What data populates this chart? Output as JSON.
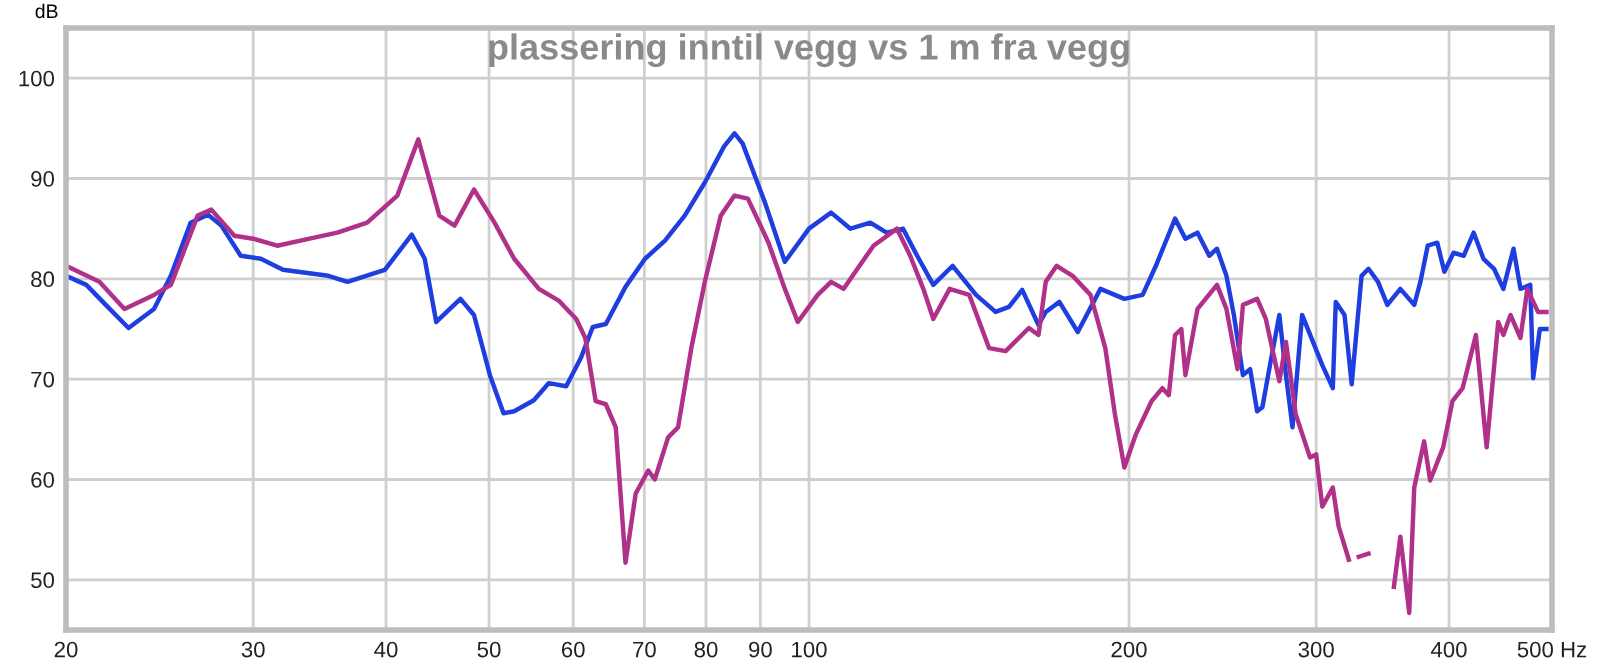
{
  "chart_data": {
    "type": "line",
    "title": "plassering inntil vegg vs 1 m fra vegg",
    "ylabel": "dB",
    "log": "x",
    "xlim": [
      20,
      500
    ],
    "ylim": [
      45,
      105
    ],
    "xticks": [
      20,
      30,
      40,
      50,
      60,
      70,
      80,
      90,
      100,
      200,
      300,
      400,
      {
        "value": 500,
        "label": "500 Hz"
      }
    ],
    "yticks": [
      50,
      60,
      70,
      80,
      90,
      100
    ],
    "grid": true,
    "marker": "none",
    "line_style": "solid",
    "series": [
      {
        "color": "#1f3ee0",
        "x": [
          20,
          20.9,
          21.8,
          22.9,
          24.2,
          25.1,
          26.2,
          27.2,
          28,
          29.2,
          30.5,
          32,
          35.3,
          36.8,
          39.9,
          42.3,
          43.5,
          44.6,
          47,
          48.4,
          50.1,
          51.6,
          52.8,
          55.1,
          56.9,
          59.1,
          61,
          62.6,
          64.4,
          67.2,
          70.1,
          73.2,
          76.4,
          79.8,
          83.2,
          85.1,
          86.6,
          90.9,
          94.9,
          100,
          104.9,
          109.4,
          114.2,
          118.3,
          122.6,
          126.4,
          130.9,
          136.5,
          143.6,
          149.8,
          154.2,
          158.7,
          164.4,
          167,
          172,
          179,
          188,
          198,
          206,
          212,
          221,
          226,
          232,
          238,
          242,
          247,
          251,
          256,
          260,
          264,
          267,
          271,
          277,
          281,
          285,
          291,
          298,
          304,
          311,
          313,
          319,
          324,
          331,
          336,
          343,
          350,
          360,
          371,
          376,
          382,
          390,
          396,
          404,
          413,
          422,
          431,
          441,
          450,
          460,
          467,
          477,
          480,
          487,
          494
        ],
        "values": [
          80.3,
          79.4,
          77.4,
          75.1,
          77,
          80.3,
          85.6,
          86.4,
          85.3,
          82.3,
          82,
          80.9,
          80.3,
          79.7,
          80.9,
          84.4,
          82,
          75.7,
          78,
          76.4,
          70.4,
          66.6,
          66.8,
          67.9,
          69.6,
          69.3,
          72.1,
          75.2,
          75.5,
          79.2,
          82,
          83.8,
          86.3,
          89.6,
          93.2,
          94.5,
          93.5,
          87.6,
          81.7,
          85,
          86.6,
          85,
          85.6,
          84.6,
          85,
          82.3,
          79.4,
          81.3,
          78.4,
          76.7,
          77.2,
          78.9,
          75.4,
          76.7,
          77.7,
          74.7,
          79,
          78,
          78.4,
          81.3,
          86,
          84,
          84.6,
          82.3,
          83,
          80.3,
          76.4,
          70.4,
          71,
          66.8,
          67.2,
          71,
          76.4,
          70.4,
          65.2,
          76.4,
          73.7,
          71.4,
          69.1,
          77.7,
          76.4,
          69.5,
          80.3,
          81,
          79.7,
          77.4,
          79,
          77.4,
          79.7,
          83.3,
          83.6,
          80.7,
          82.6,
          82.3,
          84.6,
          82,
          81,
          79,
          83,
          79,
          79.4,
          70.1,
          75,
          75
        ]
      },
      {
        "color": "#b0308a",
        "x": [
          20,
          21.5,
          22.7,
          24.2,
          25.1,
          26.6,
          27.4,
          28.8,
          30,
          31.6,
          33.9,
          36,
          38.4,
          41,
          42.9,
          44.9,
          46.4,
          48.4,
          50.6,
          52.8,
          55.7,
          58.2,
          60.4,
          61.6,
          63,
          64.4,
          65.8,
          67.2,
          68.7,
          70.6,
          71.6,
          73.7,
          75.3,
          77.5,
          79.8,
          82.6,
          85.1,
          87.6,
          91.6,
          94.9,
          97.6,
          101.9,
          104.9,
          107.8,
          110.9,
          115,
          121,
          124.5,
          128.1,
          130.9,
          135.6,
          141.5,
          147.7,
          153.1,
          161,
          164.4,
          167,
          171,
          177,
          184,
          190,
          194,
          198,
          203,
          210,
          215,
          218,
          221,
          224,
          226,
          232,
          242,
          247,
          253,
          256,
          264,
          269,
          277,
          281,
          287,
          296,
          300,
          304,
          311,
          315,
          322,
          324,
          329,
          336,
          342,
          349,
          355,
          360,
          367,
          371,
          379,
          384,
          395,
          403,
          412,
          424,
          434,
          445,
          450,
          457,
          467,
          474,
          485,
          494
        ],
        "values": [
          81.3,
          79.7,
          77,
          78.4,
          79.4,
          86.3,
          86.9,
          84.3,
          84,
          83.3,
          84,
          84.6,
          85.6,
          88.3,
          93.9,
          86.3,
          85.3,
          88.9,
          85.6,
          82,
          79,
          77.8,
          76,
          74.1,
          67.8,
          67.5,
          65.2,
          51.7,
          58.6,
          60.9,
          60,
          64.2,
          65.2,
          73.1,
          79.7,
          86.3,
          88.3,
          88,
          83.6,
          79,
          75.7,
          78.4,
          79.7,
          79,
          80.9,
          83.3,
          85,
          82.3,
          79,
          76,
          79,
          78.4,
          73.1,
          72.8,
          75.1,
          74.4,
          79.7,
          81.3,
          80.3,
          78.4,
          73.1,
          66.5,
          61.2,
          64.5,
          67.8,
          69.1,
          68.4,
          74.4,
          75,
          70.4,
          77,
          79.4,
          77,
          71,
          77.4,
          78,
          76,
          69.8,
          73.7,
          66.5,
          62.2,
          62.5,
          57.3,
          59.2,
          55.3,
          52,
          null,
          52.3,
          52.6,
          null,
          null,
          49.3,
          54.3,
          46.7,
          59.2,
          63.8,
          59.9,
          63.2,
          67.8,
          69.1,
          74.4,
          63.2,
          75.7,
          74.4,
          76.4,
          74.1,
          79,
          76.7,
          76.7
        ]
      }
    ]
  }
}
